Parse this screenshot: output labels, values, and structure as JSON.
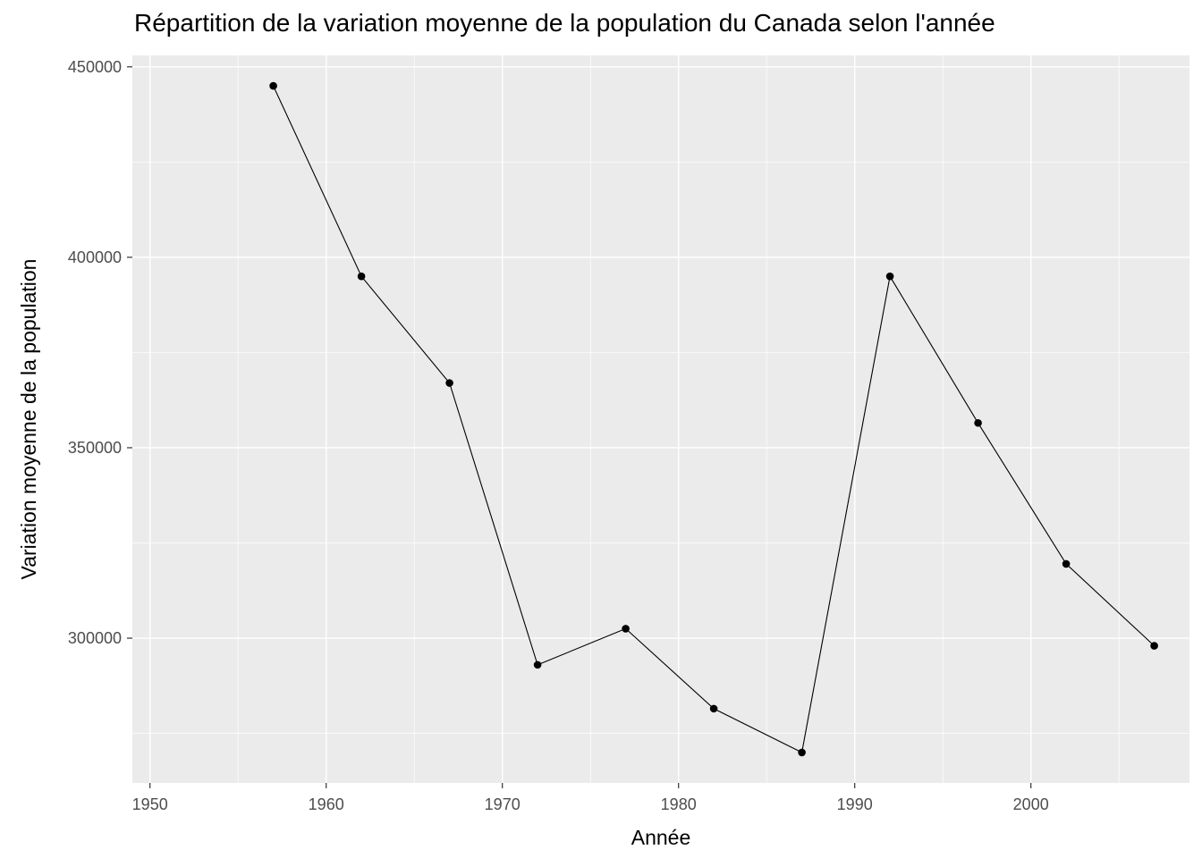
{
  "chart_data": {
    "type": "line",
    "title": "Répartition de la variation moyenne de la population du Canada selon l'année",
    "xlabel": "Année",
    "ylabel": "Variation moyenne de la population",
    "xlim": [
      1949,
      2009
    ],
    "ylim": [
      262000,
      453000
    ],
    "x_ticks": [
      1950,
      1960,
      1970,
      1980,
      1990,
      2000
    ],
    "y_ticks": [
      300000,
      350000,
      400000,
      450000
    ],
    "grid": true,
    "background_color": "#ebebeb",
    "grid_color": "#ffffff",
    "series_color": "#000000",
    "series": [
      {
        "x": [
          1957,
          1962,
          1967,
          1972,
          1977,
          1982,
          1987,
          1992,
          1997,
          2002,
          2007
        ],
        "values": [
          445000,
          395000,
          367000,
          293000,
          302500,
          281500,
          270000,
          395000,
          356500,
          319500,
          298000
        ]
      }
    ]
  }
}
